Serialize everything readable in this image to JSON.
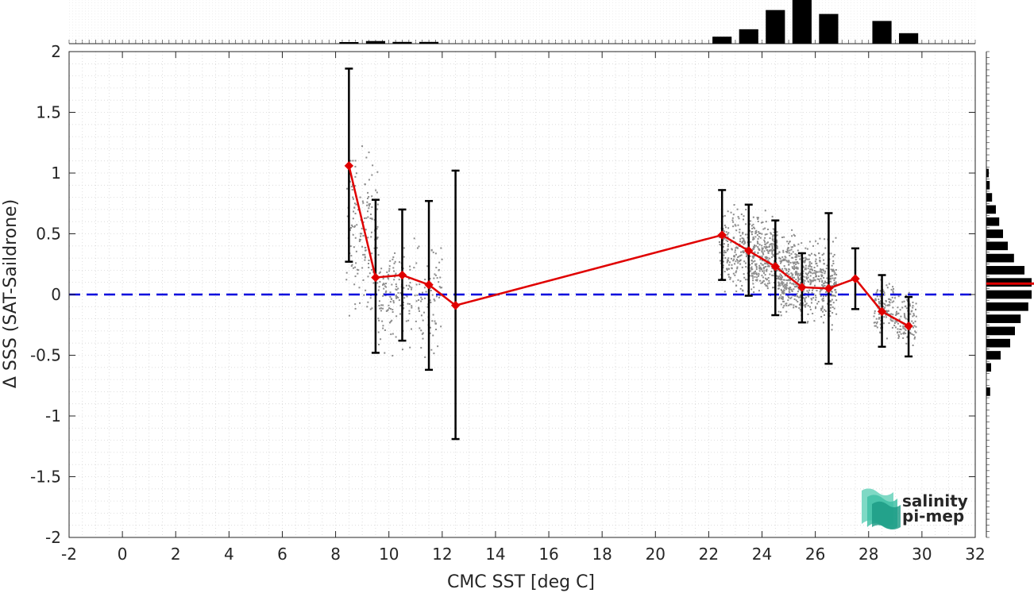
{
  "chart_data": {
    "type": "scatter",
    "xlabel": "CMC SST [deg C]",
    "ylabel": "Δ SSS (SAT-Saildrone)",
    "xlim": [
      -2,
      32
    ],
    "ylim": [
      -2,
      2
    ],
    "xticks": [
      -2,
      0,
      2,
      4,
      6,
      8,
      10,
      12,
      14,
      16,
      18,
      20,
      22,
      24,
      26,
      28,
      30,
      32
    ],
    "yticks": [
      -2,
      -1.5,
      -1,
      -0.5,
      0,
      0.5,
      1,
      1.5,
      2
    ],
    "grid": true,
    "reference_line": {
      "y": 0,
      "color": "#0000dd",
      "style": "dashed"
    },
    "series": [
      {
        "type": "line_errorbar",
        "color": "#e00000",
        "marker": "diamond",
        "x": [
          8.5,
          9.5,
          10.5,
          11.5,
          12.5,
          22.5,
          23.5,
          24.5,
          25.5,
          26.5,
          27.5,
          28.5,
          29.5
        ],
        "y": [
          1.06,
          0.14,
          0.16,
          0.08,
          -0.09,
          0.49,
          0.36,
          0.23,
          0.06,
          0.05,
          0.13,
          -0.14,
          -0.26
        ],
        "err_low": [
          0.27,
          -0.48,
          -0.38,
          -0.62,
          -1.19,
          0.12,
          -0.01,
          -0.17,
          -0.23,
          -0.57,
          -0.12,
          -0.43,
          -0.51
        ],
        "err_high": [
          1.86,
          0.78,
          0.7,
          0.77,
          1.02,
          0.86,
          0.74,
          0.61,
          0.34,
          0.67,
          0.38,
          0.16,
          -0.02
        ]
      }
    ],
    "scatter_clusters": [
      {
        "x_range": [
          8.4,
          9.6
        ],
        "y_center": 0.5,
        "y_spread": 0.9,
        "count": 160
      },
      {
        "x_range": [
          9.6,
          10.6
        ],
        "y_center": 0.0,
        "y_spread": 0.6,
        "count": 120
      },
      {
        "x_range": [
          10.6,
          12.0
        ],
        "y_center": 0.0,
        "y_spread": 0.6,
        "count": 110
      },
      {
        "x_range": [
          22.4,
          23.6
        ],
        "y_center": 0.35,
        "y_spread": 0.45,
        "count": 220
      },
      {
        "x_range": [
          23.6,
          24.6
        ],
        "y_center": 0.3,
        "y_spread": 0.45,
        "count": 300
      },
      {
        "x_range": [
          24.6,
          25.6
        ],
        "y_center": 0.15,
        "y_spread": 0.45,
        "count": 340
      },
      {
        "x_range": [
          25.6,
          26.8
        ],
        "y_center": 0.1,
        "y_spread": 0.45,
        "count": 300
      },
      {
        "x_range": [
          28.2,
          29.0
        ],
        "y_center": -0.1,
        "y_spread": 0.3,
        "count": 120
      },
      {
        "x_range": [
          29.0,
          29.8
        ],
        "y_center": -0.2,
        "y_spread": 0.3,
        "count": 100
      }
    ],
    "top_histogram": {
      "bins": [
        8.5,
        9.5,
        10.5,
        11.5,
        22.5,
        23.5,
        24.5,
        25.5,
        26.5,
        28.5,
        29.5
      ],
      "heights": [
        0.02,
        0.06,
        0.04,
        0.04,
        0.16,
        0.33,
        0.77,
        1.0,
        0.68,
        0.52,
        0.24
      ]
    },
    "right_histogram": {
      "bins": [
        1.0,
        0.9,
        0.8,
        0.7,
        0.6,
        0.5,
        0.4,
        0.3,
        0.2,
        0.1,
        0.0,
        -0.1,
        -0.2,
        -0.3,
        -0.4,
        -0.5,
        -0.6,
        -0.8
      ],
      "heights": [
        0.05,
        0.07,
        0.12,
        0.2,
        0.27,
        0.35,
        0.45,
        0.58,
        0.8,
        0.95,
        0.95,
        0.88,
        0.72,
        0.6,
        0.5,
        0.3,
        0.1,
        0.08
      ],
      "mean_line": {
        "y": 0.09,
        "color": "#e00000"
      }
    }
  },
  "logo": {
    "line1": "salinity",
    "line2": "pi-mep",
    "color": "#1aa58e"
  }
}
